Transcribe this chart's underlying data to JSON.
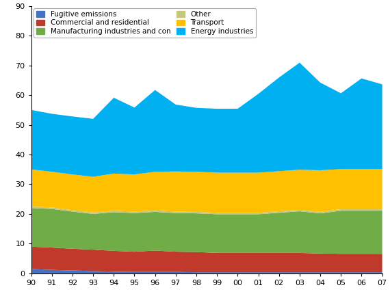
{
  "years": [
    1990,
    1991,
    1992,
    1993,
    1994,
    1995,
    1996,
    1997,
    1998,
    1999,
    2000,
    2001,
    2002,
    2003,
    2004,
    2005,
    2006,
    2007
  ],
  "fugitive": [
    1.5,
    1.2,
    1.0,
    0.8,
    0.6,
    0.5,
    0.5,
    0.5,
    0.4,
    0.4,
    0.4,
    0.4,
    0.4,
    0.4,
    0.4,
    0.4,
    0.4,
    0.4
  ],
  "commercial": [
    7.5,
    7.5,
    7.3,
    7.2,
    7.0,
    6.8,
    7.2,
    6.8,
    6.8,
    6.5,
    6.5,
    6.5,
    6.5,
    6.5,
    6.3,
    6.2,
    6.2,
    6.2
  ],
  "manufacturing": [
    13.0,
    13.0,
    12.5,
    12.0,
    13.0,
    13.0,
    13.0,
    13.0,
    13.0,
    13.0,
    13.0,
    13.0,
    13.5,
    14.0,
    13.5,
    14.5,
    14.5,
    14.5
  ],
  "other": [
    0.5,
    0.5,
    0.5,
    0.5,
    0.5,
    0.5,
    0.5,
    0.5,
    0.5,
    0.5,
    0.5,
    0.5,
    0.5,
    0.5,
    0.5,
    0.5,
    0.5,
    0.5
  ],
  "transport": [
    12.5,
    12.0,
    12.0,
    12.0,
    12.5,
    12.5,
    13.0,
    13.5,
    13.5,
    13.5,
    13.5,
    13.5,
    13.5,
    13.5,
    14.0,
    13.5,
    13.5,
    13.5
  ],
  "energy": [
    20.0,
    19.5,
    19.5,
    19.5,
    25.5,
    22.5,
    27.5,
    22.5,
    21.5,
    21.5,
    21.5,
    26.5,
    31.5,
    36.0,
    29.5,
    25.5,
    30.5,
    28.5
  ],
  "colors": {
    "fugitive": "#4472C4",
    "commercial": "#C0392B",
    "manufacturing": "#70AD47",
    "other": "#C5C77A",
    "transport": "#FFC000",
    "energy": "#00B0F0"
  },
  "ylim": [
    0,
    90
  ],
  "yticks": [
    0,
    10,
    20,
    30,
    40,
    50,
    60,
    70,
    80,
    90
  ],
  "background_color": "#ffffff",
  "legend_border_color": "#aaaaaa",
  "tick_fontsize": 8,
  "legend_fontsize": 7.5
}
